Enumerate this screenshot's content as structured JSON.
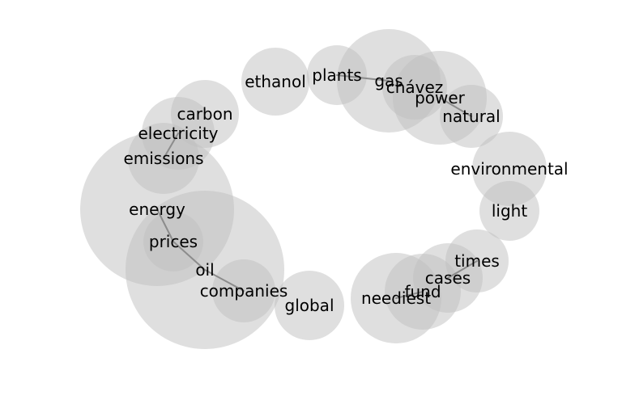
{
  "terms": [
    {
      "id": "ethanol",
      "text": "ethanol"
    },
    {
      "id": "plants",
      "text": "plants"
    },
    {
      "id": "gas",
      "text": "gas"
    },
    {
      "id": "chavez",
      "text": "chávez"
    },
    {
      "id": "power",
      "text": "power"
    },
    {
      "id": "natural",
      "text": "natural"
    },
    {
      "id": "environmental",
      "text": "environmental"
    },
    {
      "id": "light",
      "text": "light"
    },
    {
      "id": "times",
      "text": "times"
    },
    {
      "id": "cases",
      "text": "cases"
    },
    {
      "id": "fund",
      "text": "fund"
    },
    {
      "id": "neediest",
      "text": "neediest"
    },
    {
      "id": "global",
      "text": "global"
    },
    {
      "id": "companies",
      "text": "companies"
    },
    {
      "id": "oil",
      "text": "oil"
    },
    {
      "id": "prices",
      "text": "prices"
    },
    {
      "id": "energy",
      "text": "energy"
    },
    {
      "id": "emissions",
      "text": "emissions"
    },
    {
      "id": "electricity",
      "text": "electricity"
    },
    {
      "id": "carbon",
      "text": "carbon"
    }
  ],
  "links": [
    [
      "plants",
      "gas"
    ],
    [
      "power",
      "natural"
    ],
    [
      "energy",
      "prices"
    ],
    [
      "prices",
      "oil"
    ],
    [
      "oil",
      "companies"
    ],
    [
      "electricity",
      "emissions"
    ],
    [
      "fund",
      "neediest"
    ],
    [
      "cases",
      "times"
    ]
  ]
}
